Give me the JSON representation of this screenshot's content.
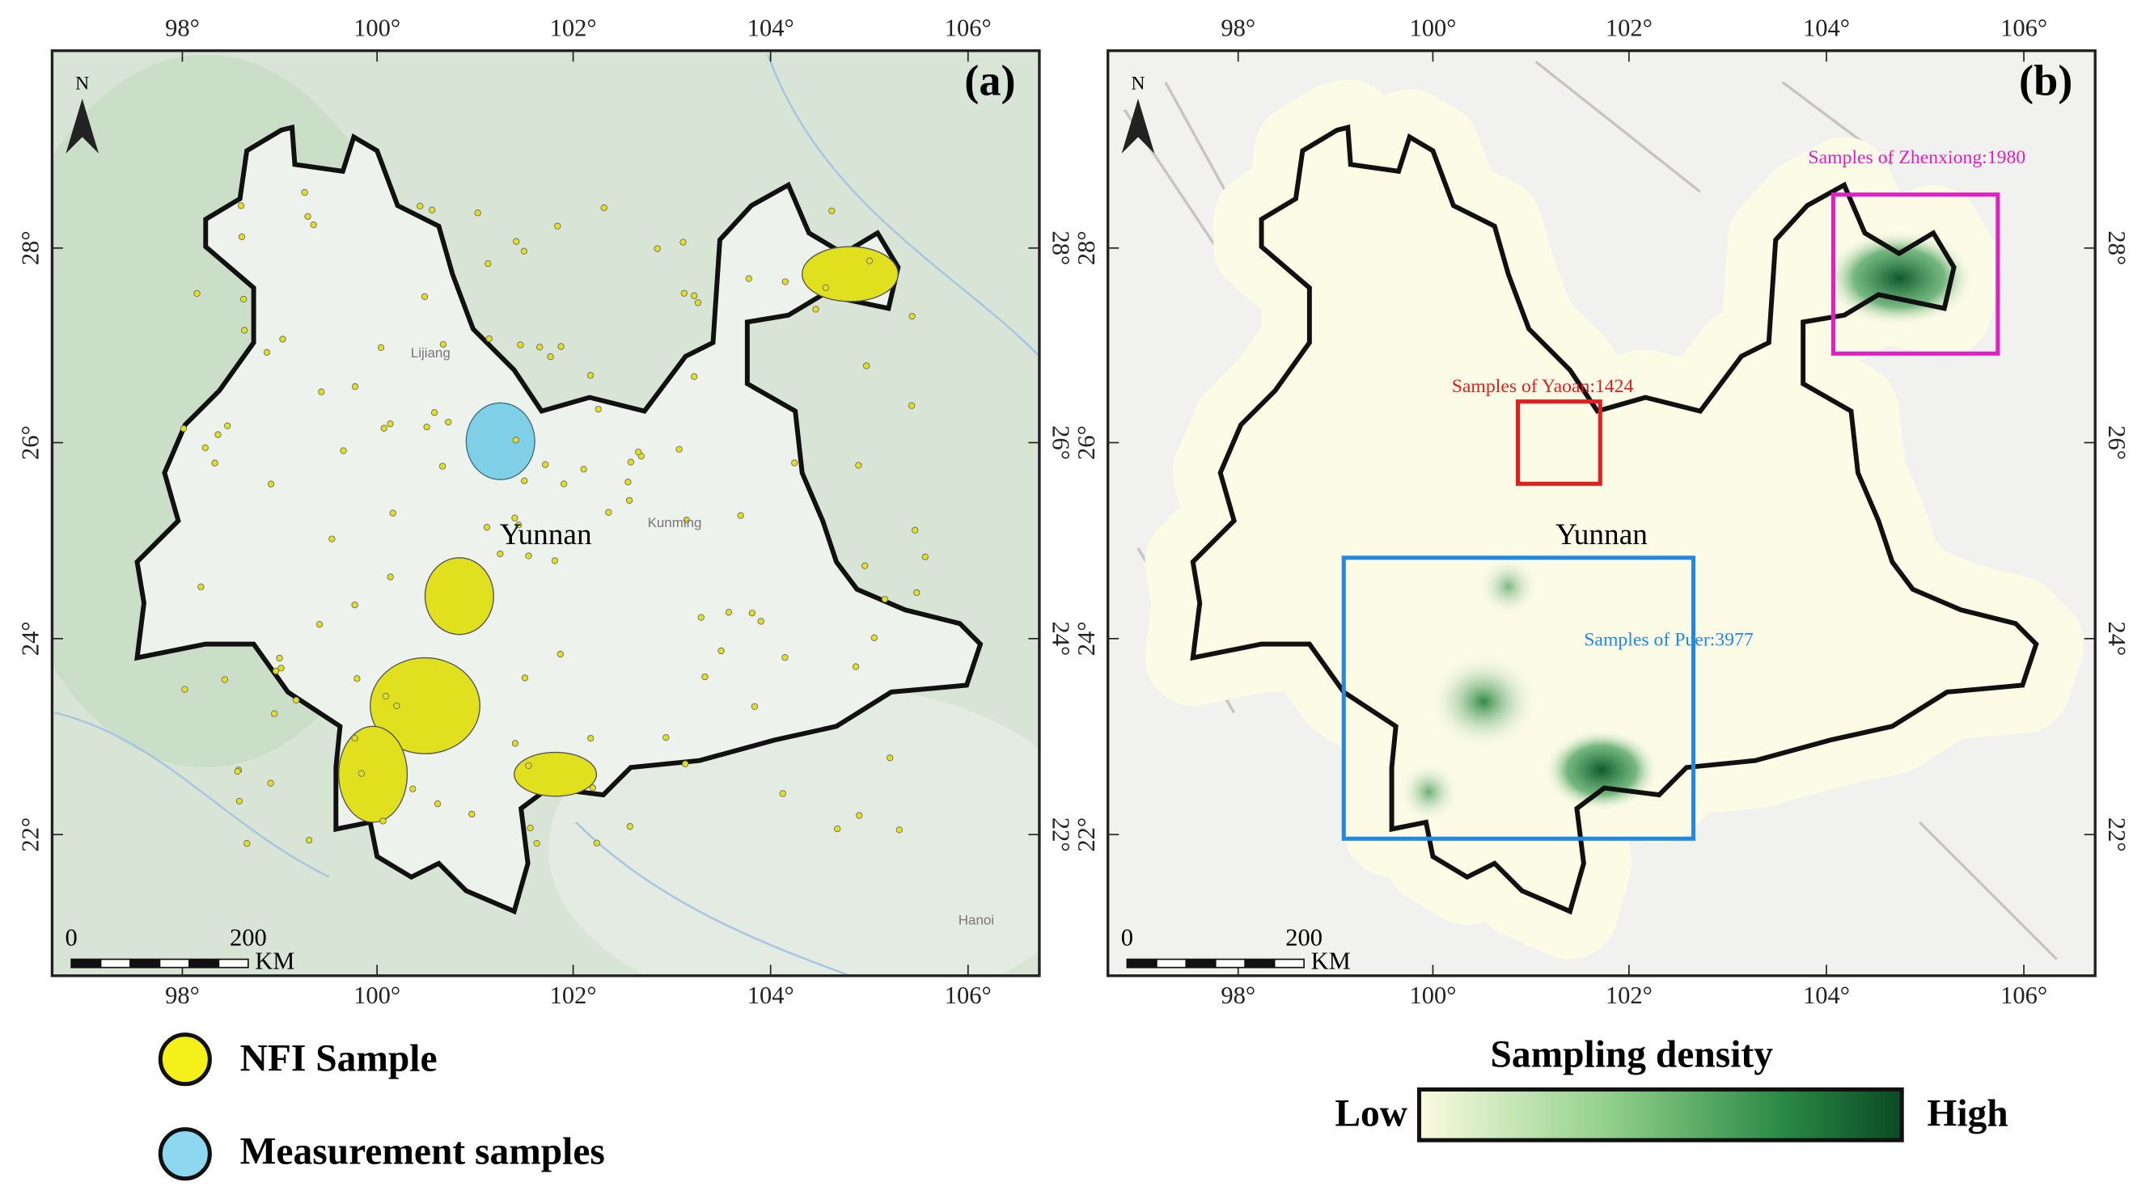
{
  "panels": [
    {
      "label": "(a)",
      "north": "N",
      "region_label": "Yunnan",
      "x_ticks": [
        "98°",
        "100°",
        "102°",
        "104°",
        "106°"
      ],
      "y_ticks": [
        "28°",
        "26°",
        "24°",
        "22°"
      ],
      "place_labels": [
        "Lijiang",
        "Kunming",
        "Hanoi"
      ],
      "scale_bar": {
        "start": "0",
        "end": "200",
        "unit": "KM"
      }
    },
    {
      "label": "(b)",
      "north": "N",
      "region_label": "Yunnan",
      "x_ticks": [
        "98°",
        "100°",
        "102°",
        "104°",
        "106°"
      ],
      "y_ticks": [
        "28°",
        "26°",
        "24°",
        "22°"
      ],
      "annotations": [
        "Samples of Zhenxiong:1980",
        "Samples of Yaoan:1424",
        "Samples of Puer:3977"
      ],
      "scale_bar": {
        "start": "0",
        "end": "200",
        "unit": "KM"
      }
    }
  ],
  "legend": {
    "items": [
      "NFI Sample",
      "Measurement samples"
    ]
  },
  "density_legend": {
    "title": "Sampling density",
    "low": "Low",
    "high": "High"
  }
}
